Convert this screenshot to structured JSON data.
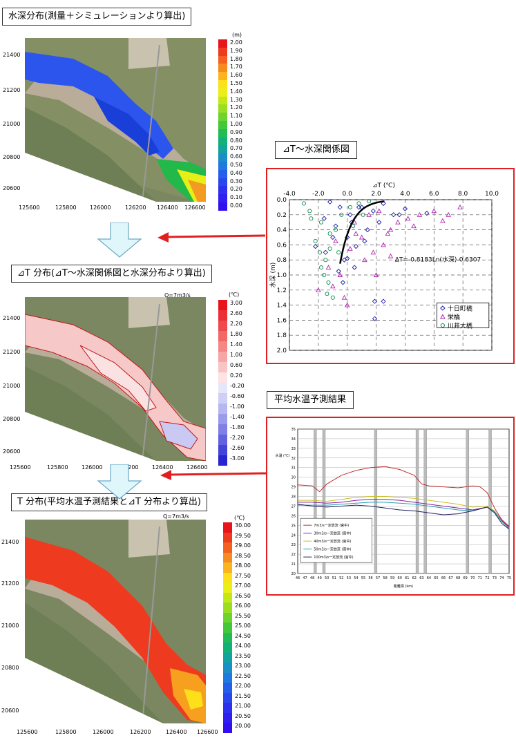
{
  "panels": {
    "depth_title": "水深分布(測量＋シミュレーションより算出)",
    "dt_title": "⊿T 分布(⊿T～水深関係図と水深分布より算出)",
    "t_title": "T 分布(平均水温予測結果と⊿T 分布より算出)",
    "relation_title": "⊿T～水深関係図",
    "prediction_title": "平均水温予測結果",
    "q_label_dt": "Q=7m3/s",
    "q_label_t": "Q=7m3/s"
  },
  "map_axes": {
    "x_ticks": [
      "125600",
      "125800",
      "126000",
      "126200",
      "126400",
      "126600"
    ],
    "y_ticks": [
      "21400",
      "21200",
      "21000",
      "20800",
      "20600"
    ]
  },
  "colorbars": {
    "depth": {
      "unit": "(m)",
      "labels": [
        "2.00",
        "1.90",
        "1.80",
        "1.70",
        "1.60",
        "1.50",
        "1.40",
        "1.30",
        "1.20",
        "1.10",
        "1.00",
        "0.90",
        "0.80",
        "0.70",
        "0.60",
        "0.50",
        "0.40",
        "0.30",
        "0.20",
        "0.10",
        "0.00"
      ],
      "colors": [
        "#e8141c",
        "#ee3a1e",
        "#f3601f",
        "#f78a20",
        "#fbb31e",
        "#fde01a",
        "#e9ef17",
        "#c2e81a",
        "#9ade22",
        "#6fd32e",
        "#43c83c",
        "#21bc56",
        "#14b07a",
        "#12a3a0",
        "#1a8fc6",
        "#2079df",
        "#255fe9",
        "#2a47ee",
        "#2e30f0",
        "#2f1ff0",
        "#3010ee"
      ]
    },
    "dt": {
      "unit": "(℃)",
      "labels": [
        "3.00",
        "2.60",
        "2.20",
        "1.80",
        "1.40",
        "1.00",
        "0.60",
        "0.20",
        "-0.20",
        "-0.60",
        "-1.00",
        "-1.40",
        "-1.80",
        "-2.20",
        "-2.60",
        "-3.00"
      ],
      "colors": [
        "#e8141c",
        "#eb2f34",
        "#ee4a4d",
        "#f16868",
        "#f48686",
        "#f7a5a5",
        "#fac4c4",
        "#fde3e3",
        "#e6e6fb",
        "#cfcff6",
        "#b6b6f1",
        "#9b9bec",
        "#7f7fe6",
        "#6262e0",
        "#4444d9",
        "#2525d1"
      ]
    },
    "t": {
      "unit": "(℃)",
      "labels": [
        "30.00",
        "29.50",
        "29.00",
        "28.50",
        "28.00",
        "27.50",
        "27.00",
        "26.50",
        "26.00",
        "25.50",
        "25.00",
        "24.50",
        "24.00",
        "23.50",
        "23.00",
        "22.50",
        "22.00",
        "21.50",
        "21.00",
        "20.50",
        "20.00"
      ],
      "colors": [
        "#e8141c",
        "#ee3a1e",
        "#f3601f",
        "#f78a20",
        "#fbb31e",
        "#fde01a",
        "#e9ef17",
        "#c2e81a",
        "#9ade22",
        "#6fd32e",
        "#43c83c",
        "#21bc56",
        "#14b07a",
        "#12a3a0",
        "#1a8fc6",
        "#2079df",
        "#255fe9",
        "#2a47ee",
        "#2e30f0",
        "#2f1ff0",
        "#3010ee"
      ]
    }
  },
  "chart_data": [
    {
      "type": "scatter",
      "title": "⊿T～水深関係図",
      "xlabel": "⊿T (℃)",
      "ylabel": "水深 (m)",
      "xlim": [
        -4.0,
        10.0
      ],
      "ylim": [
        0.0,
        2.0
      ],
      "y_inverted": true,
      "x_axis_position": "top",
      "x_ticks": [
        "-4.0",
        "-2.0",
        "0.0",
        "2.0",
        "4.0",
        "6.0",
        "8.0",
        "10.0"
      ],
      "y_ticks": [
        "0.0",
        "0.2",
        "0.4",
        "0.6",
        "0.8",
        "1.0",
        "1.2",
        "1.4",
        "1.6",
        "1.8",
        "2.0"
      ],
      "grid": true,
      "legend_position": "bottom-right",
      "annotation": "ΔT=-0.8183Ln(水深)-0.6307",
      "series": [
        {
          "name": "十日町橋",
          "marker": "diamond",
          "color": "#1a1aa8",
          "points": [
            [
              -1.2,
              0.03
            ],
            [
              -0.5,
              0.1
            ],
            [
              0.2,
              0.2
            ],
            [
              1.0,
              0.1
            ],
            [
              1.8,
              0.15
            ],
            [
              2.5,
              0.05
            ],
            [
              3.2,
              0.2
            ],
            [
              4.0,
              0.12
            ],
            [
              -0.8,
              0.35
            ],
            [
              0.0,
              0.5
            ],
            [
              0.6,
              0.62
            ],
            [
              -1.5,
              0.7
            ],
            [
              -0.2,
              0.8
            ],
            [
              0.5,
              0.9
            ],
            [
              1.4,
              0.4
            ],
            [
              2.2,
              0.3
            ],
            [
              -2.2,
              0.62
            ],
            [
              -1.0,
              0.5
            ],
            [
              0.0,
              0.78
            ],
            [
              -0.3,
              1.1
            ],
            [
              1.9,
              1.35
            ],
            [
              2.5,
              1.35
            ],
            [
              1.9,
              1.58
            ],
            [
              0.8,
              0.1
            ],
            [
              5.5,
              0.18
            ],
            [
              3.6,
              0.2
            ],
            [
              -1.6,
              0.25
            ],
            [
              1.2,
              0.55
            ],
            [
              -0.6,
              0.95
            ],
            [
              0.3,
              0.3
            ]
          ]
        },
        {
          "name": "栄橋",
          "marker": "triangle",
          "color": "#b020b0",
          "points": [
            [
              -2.0,
              1.2
            ],
            [
              -1.3,
              0.9
            ],
            [
              -0.5,
              1.0
            ],
            [
              0.0,
              1.4
            ],
            [
              -0.2,
              1.3
            ],
            [
              1.0,
              0.5
            ],
            [
              1.8,
              0.7
            ],
            [
              2.5,
              0.6
            ],
            [
              3.0,
              0.4
            ],
            [
              3.5,
              0.3
            ],
            [
              4.2,
              0.25
            ],
            [
              5.0,
              0.2
            ],
            [
              6.0,
              0.15
            ],
            [
              7.0,
              0.2
            ],
            [
              7.8,
              0.1
            ],
            [
              0.5,
              0.3
            ],
            [
              1.5,
              0.2
            ],
            [
              2.8,
              0.45
            ],
            [
              -0.8,
              0.55
            ],
            [
              0.2,
              0.65
            ],
            [
              1.2,
              0.8
            ],
            [
              2.0,
              1.0
            ],
            [
              3.0,
              0.75
            ],
            [
              -1.0,
              1.15
            ],
            [
              0.6,
              0.45
            ],
            [
              4.6,
              0.35
            ],
            [
              6.6,
              0.28
            ],
            [
              2.2,
              0.15
            ]
          ]
        },
        {
          "name": "川井大橋",
          "marker": "circle",
          "color": "#0a8a50",
          "points": [
            [
              -3.0,
              0.05
            ],
            [
              -2.5,
              0.25
            ],
            [
              -1.8,
              0.3
            ],
            [
              -1.2,
              0.45
            ],
            [
              -2.2,
              0.55
            ],
            [
              -1.5,
              0.8
            ],
            [
              -1.8,
              0.9
            ],
            [
              -1.3,
              1.1
            ],
            [
              -1.0,
              1.3
            ],
            [
              -1.4,
              1.25
            ],
            [
              -0.8,
              0.4
            ],
            [
              -0.4,
              0.2
            ],
            [
              0.2,
              0.1
            ],
            [
              0.8,
              0.05
            ],
            [
              1.5,
              0.02
            ],
            [
              -2.6,
              0.15
            ],
            [
              -1.9,
              0.7
            ],
            [
              -1.2,
              0.65
            ],
            [
              -1.6,
              1.0
            ],
            [
              -0.6,
              0.7
            ],
            [
              0.4,
              0.35
            ],
            [
              1.1,
              0.2
            ]
          ]
        }
      ],
      "fit_curve": {
        "equation": "ΔT=-0.8183Ln(水深)-0.6307",
        "a": -0.8183,
        "b": -0.6307,
        "depth_range": [
          0.02,
          0.85
        ]
      }
    },
    {
      "type": "line",
      "title": "平均水温予測結果",
      "xlabel": "距離標 (km)",
      "ylabel": "水温 (℃)",
      "xlim": [
        46,
        75
      ],
      "ylim": [
        20,
        35
      ],
      "x_ticks": [
        "46",
        "47",
        "48",
        "49",
        "50",
        "51",
        "52",
        "53",
        "54",
        "55",
        "56",
        "57",
        "58",
        "59",
        "60",
        "61",
        "62",
        "63",
        "64",
        "65",
        "66",
        "67",
        "68",
        "69",
        "70",
        "71",
        "72",
        "73",
        "74",
        "75"
      ],
      "y_ticks": [
        "35",
        "34",
        "33",
        "32",
        "31",
        "30",
        "29",
        "28",
        "27",
        "26",
        "25",
        "24",
        "23",
        "22",
        "21",
        "20"
      ],
      "grid": true,
      "legend_position": "bottom-left",
      "series": [
        {
          "name": "7m3/s一定放流 (宮中)",
          "color": "#c03030",
          "x": [
            46,
            48,
            49,
            50,
            52,
            54,
            56,
            58,
            60,
            62,
            63,
            64,
            66,
            68,
            70,
            71,
            72,
            73,
            74,
            75
          ],
          "values": [
            29.2,
            29.1,
            28.5,
            29.3,
            30.2,
            30.7,
            31.0,
            31.1,
            30.8,
            30.2,
            29.3,
            29.1,
            29.0,
            28.9,
            29.1,
            29.0,
            28.4,
            26.8,
            25.6,
            24.9
          ]
        },
        {
          "name": "30m3/s一定放流 (宮中)",
          "color": "#8a1aa8",
          "x": [
            46,
            48,
            50,
            52,
            54,
            56,
            58,
            60,
            62,
            64,
            66,
            68,
            70,
            72,
            73,
            74,
            75
          ],
          "values": [
            27.4,
            27.4,
            27.3,
            27.4,
            27.6,
            27.7,
            27.7,
            27.6,
            27.4,
            27.2,
            27.0,
            26.8,
            26.6,
            26.9,
            26.5,
            25.5,
            24.8
          ]
        },
        {
          "name": "40m3/s一定放流 (宮中)",
          "color": "#c8c020",
          "x": [
            46,
            48,
            50,
            52,
            54,
            56,
            58,
            60,
            62,
            64,
            66,
            68,
            70,
            72,
            73,
            74,
            75
          ],
          "values": [
            27.6,
            27.6,
            27.5,
            27.7,
            27.9,
            28.0,
            28.0,
            27.9,
            27.8,
            27.6,
            27.4,
            27.2,
            26.9,
            27.0,
            26.5,
            25.4,
            24.7
          ]
        },
        {
          "name": "50m3/s一定放流 (宮中)",
          "color": "#20a0b0",
          "x": [
            46,
            48,
            50,
            52,
            54,
            56,
            58,
            60,
            62,
            64,
            66,
            68,
            70,
            72,
            73,
            74,
            75
          ],
          "values": [
            27.1,
            27.1,
            27.1,
            27.2,
            27.3,
            27.4,
            27.4,
            27.3,
            27.2,
            27.0,
            26.8,
            26.6,
            26.5,
            26.9,
            26.4,
            25.4,
            24.7
          ]
        },
        {
          "name": "100m3/s一定放流 (宮中)",
          "color": "#202060",
          "x": [
            46,
            48,
            50,
            52,
            54,
            56,
            58,
            60,
            62,
            64,
            66,
            68,
            70,
            72,
            73,
            74,
            75
          ],
          "values": [
            27.2,
            27.0,
            26.9,
            27.0,
            27.1,
            27.0,
            26.8,
            26.6,
            26.5,
            26.3,
            26.1,
            26.2,
            26.5,
            26.9,
            26.3,
            25.2,
            24.6
          ]
        }
      ]
    }
  ]
}
